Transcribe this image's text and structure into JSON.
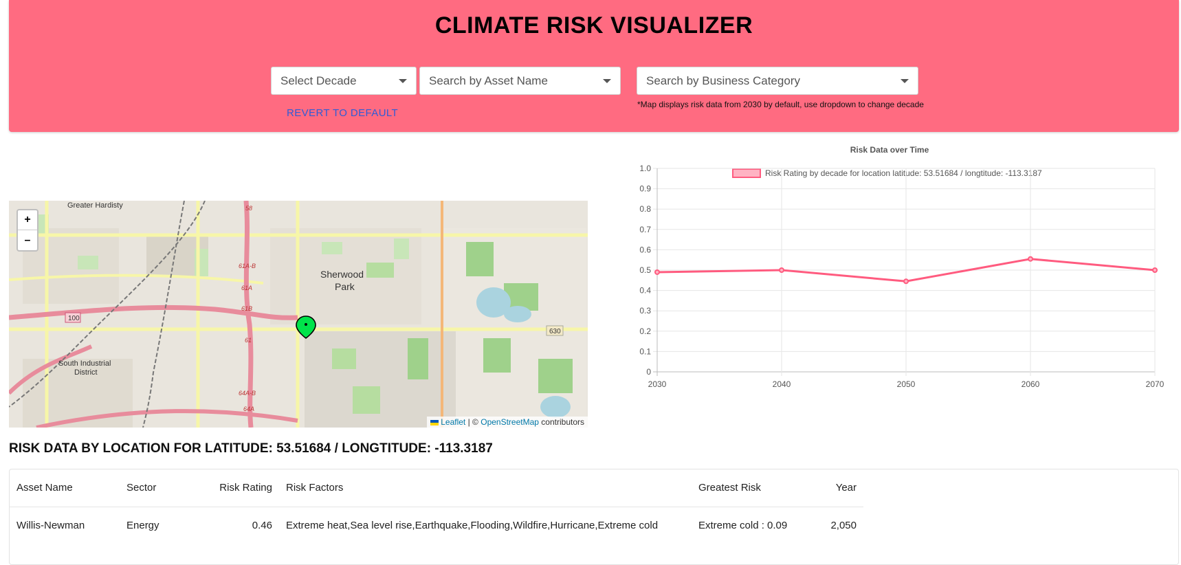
{
  "header": {
    "title": "CLIMATE RISK VISUALIZER",
    "decode_placeholder": "Select Decade",
    "asset_placeholder": "Search by Asset Name",
    "category_placeholder": "Search by Business Category",
    "revert_label": "REVERT TO DEFAULT",
    "note": "*Map displays risk data from 2030 by default, use dropdown to change decade",
    "bg_color": "#ff6b81"
  },
  "map": {
    "zoom_in": "+",
    "zoom_out": "–",
    "attribution_leaflet": "Leaflet",
    "attribution_sep": "| ©",
    "attribution_osm": "OpenStreetMap",
    "attribution_tail": "contributors",
    "labels": [
      "Greater Hardisty",
      "Sherwood",
      "Park",
      "South Industrial",
      "District",
      "100",
      "630",
      "58",
      "61A-B",
      "61A",
      "61B",
      "61",
      "64A-B",
      "64A"
    ],
    "marker_color": "#00c853"
  },
  "chart_data": {
    "type": "line",
    "title": "Risk Data over Time",
    "categories": [
      "2030",
      "2040",
      "2050",
      "2060",
      "2070"
    ],
    "series": [
      {
        "name": "Risk Rating by decade for location latitude: 53.51684 / longtitude: -113.3187",
        "values": [
          0.49,
          0.5,
          0.445,
          0.555,
          0.5
        ]
      }
    ],
    "ylim": [
      0,
      1
    ],
    "yticks": [
      "0",
      "0.1",
      "0.2",
      "0.3",
      "0.4",
      "0.5",
      "0.6",
      "0.7",
      "0.8",
      "0.9",
      "1.0"
    ],
    "color": "#ff5b7f",
    "grid": true,
    "legend": "top"
  },
  "risk_section": {
    "title": "RISK DATA BY LOCATION FOR LATITUDE: 53.51684 / LONGTITUDE: -113.3187",
    "columns": [
      "Asset Name",
      "Sector",
      "Risk Rating",
      "Risk Factors",
      "Greatest Risk",
      "Year"
    ],
    "rows": [
      {
        "asset": "Willis-Newman",
        "sector": "Energy",
        "rating": "0.46",
        "factors": "Extreme heat,Sea level rise,Earthquake,Flooding,Wildfire,Hurricane,Extreme cold",
        "greatest": "Extreme cold : 0.09",
        "year": "2,050"
      }
    ]
  }
}
